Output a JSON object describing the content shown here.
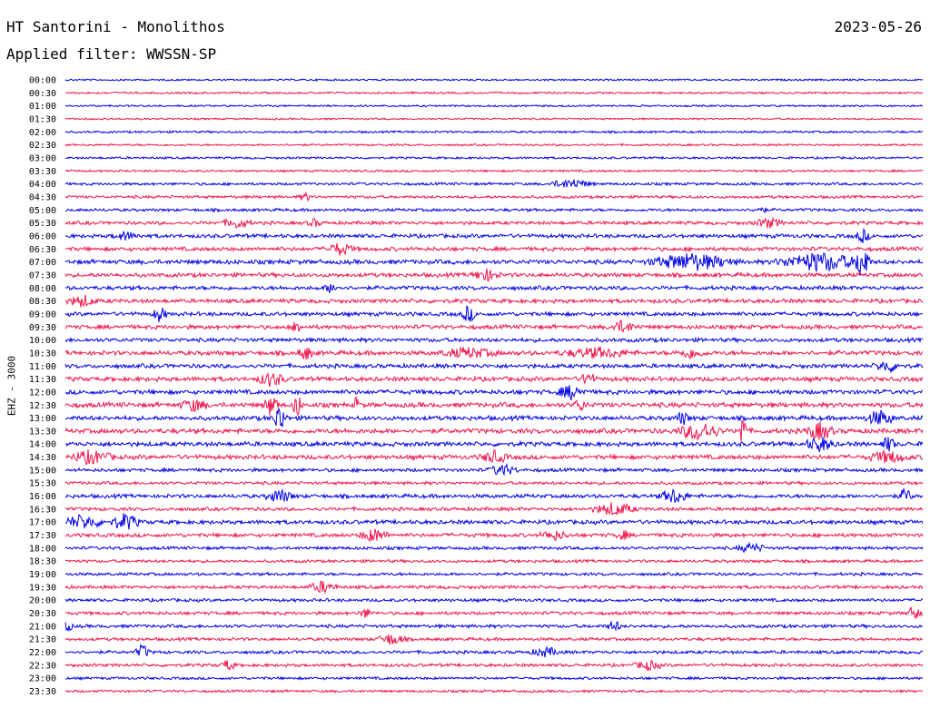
{
  "header": {
    "title": "HT Santorini - Monolithos",
    "date": "2023-05-26",
    "filter": "Applied filter: WWSSN-SP"
  },
  "side_label": "EHZ - 3000",
  "chart_data": {
    "type": "line",
    "title": "HT Santorini - Monolithos",
    "ylabel": "EHZ - 3000",
    "grid": false,
    "legend": "none",
    "colors": [
      "#0000e6",
      "#f0144b"
    ],
    "rows": [
      {
        "label": "00:00",
        "level": 0.2,
        "events": []
      },
      {
        "label": "00:30",
        "level": 0.25,
        "events": []
      },
      {
        "label": "01:00",
        "level": 0.22,
        "events": []
      },
      {
        "label": "01:30",
        "level": 0.2,
        "events": []
      },
      {
        "label": "02:00",
        "level": 0.3,
        "events": []
      },
      {
        "label": "02:30",
        "level": 0.25,
        "events": []
      },
      {
        "label": "03:00",
        "level": 0.3,
        "events": []
      },
      {
        "label": "03:30",
        "level": 0.3,
        "events": []
      },
      {
        "label": "04:00",
        "level": 0.45,
        "events": [
          {
            "t": 0.59,
            "w": 0.03,
            "a": 5
          }
        ]
      },
      {
        "label": "04:30",
        "level": 0.5,
        "events": [
          {
            "t": 0.28,
            "w": 0.01,
            "a": 4
          }
        ]
      },
      {
        "label": "05:00",
        "level": 0.55,
        "events": [
          {
            "t": 0.81,
            "w": 0.01,
            "a": 3
          }
        ]
      },
      {
        "label": "05:30",
        "level": 0.7,
        "events": [
          {
            "t": 0.2,
            "w": 0.02,
            "a": 5
          },
          {
            "t": 0.29,
            "w": 0.01,
            "a": 4
          },
          {
            "t": 0.82,
            "w": 0.02,
            "a": 5
          }
        ]
      },
      {
        "label": "06:00",
        "level": 0.8,
        "events": [
          {
            "t": 0.07,
            "w": 0.02,
            "a": 4
          },
          {
            "t": 0.93,
            "w": 0.01,
            "a": 7
          }
        ]
      },
      {
        "label": "06:30",
        "level": 0.85,
        "events": [
          {
            "t": 0.32,
            "w": 0.02,
            "a": 6
          }
        ]
      },
      {
        "label": "07:00",
        "level": 1.0,
        "events": [
          {
            "t": 0.73,
            "w": 0.06,
            "a": 9
          },
          {
            "t": 0.88,
            "w": 0.06,
            "a": 10
          },
          {
            "t": 0.93,
            "w": 0.01,
            "a": 22
          }
        ]
      },
      {
        "label": "07:30",
        "level": 0.9,
        "events": [
          {
            "t": 0.49,
            "w": 0.02,
            "a": 6
          }
        ]
      },
      {
        "label": "08:00",
        "level": 0.85,
        "events": [
          {
            "t": 0.31,
            "w": 0.01,
            "a": 5
          }
        ]
      },
      {
        "label": "08:30",
        "level": 0.9,
        "events": [
          {
            "t": 0.02,
            "w": 0.02,
            "a": 6
          }
        ]
      },
      {
        "label": "09:00",
        "level": 0.85,
        "events": [
          {
            "t": 0.11,
            "w": 0.01,
            "a": 8
          },
          {
            "t": 0.47,
            "w": 0.01,
            "a": 9
          }
        ]
      },
      {
        "label": "09:30",
        "level": 0.9,
        "events": [
          {
            "t": 0.27,
            "w": 0.005,
            "a": 14
          },
          {
            "t": 0.65,
            "w": 0.02,
            "a": 6
          }
        ]
      },
      {
        "label": "10:00",
        "level": 0.85,
        "events": []
      },
      {
        "label": "10:30",
        "level": 1.0,
        "events": [
          {
            "t": 0.28,
            "w": 0.01,
            "a": 8
          },
          {
            "t": 0.47,
            "w": 0.04,
            "a": 5
          },
          {
            "t": 0.62,
            "w": 0.05,
            "a": 5
          },
          {
            "t": 0.73,
            "w": 0.02,
            "a": 5
          }
        ]
      },
      {
        "label": "11:00",
        "level": 0.9,
        "events": [
          {
            "t": 0.96,
            "w": 0.02,
            "a": 6
          }
        ]
      },
      {
        "label": "11:30",
        "level": 1.0,
        "events": [
          {
            "t": 0.24,
            "w": 0.02,
            "a": 7
          },
          {
            "t": 0.61,
            "w": 0.01,
            "a": 8
          }
        ]
      },
      {
        "label": "12:00",
        "level": 1.0,
        "events": [
          {
            "t": 0.59,
            "w": 0.02,
            "a": 7
          }
        ]
      },
      {
        "label": "12:30",
        "level": 1.1,
        "events": [
          {
            "t": 0.15,
            "w": 0.02,
            "a": 6
          },
          {
            "t": 0.24,
            "w": 0.01,
            "a": 12
          },
          {
            "t": 0.27,
            "w": 0.005,
            "a": 22
          },
          {
            "t": 0.34,
            "w": 0.003,
            "a": 14
          },
          {
            "t": 0.6,
            "w": 0.01,
            "a": 6
          }
        ]
      },
      {
        "label": "13:00",
        "level": 1.0,
        "events": [
          {
            "t": 0.25,
            "w": 0.01,
            "a": 16
          },
          {
            "t": 0.72,
            "w": 0.01,
            "a": 7
          },
          {
            "t": 0.95,
            "w": 0.02,
            "a": 8
          }
        ]
      },
      {
        "label": "13:30",
        "level": 1.1,
        "events": [
          {
            "t": 0.74,
            "w": 0.03,
            "a": 10
          },
          {
            "t": 0.79,
            "w": 0.005,
            "a": 24
          },
          {
            "t": 0.88,
            "w": 0.02,
            "a": 9
          }
        ]
      },
      {
        "label": "14:00",
        "level": 1.0,
        "events": [
          {
            "t": 0.88,
            "w": 0.02,
            "a": 8
          },
          {
            "t": 0.96,
            "w": 0.01,
            "a": 8
          }
        ]
      },
      {
        "label": "14:30",
        "level": 1.0,
        "events": [
          {
            "t": 0.03,
            "w": 0.03,
            "a": 7
          },
          {
            "t": 0.5,
            "w": 0.02,
            "a": 6
          },
          {
            "t": 0.96,
            "w": 0.03,
            "a": 6
          }
        ]
      },
      {
        "label": "15:00",
        "level": 0.7,
        "events": [
          {
            "t": 0.51,
            "w": 0.02,
            "a": 6
          }
        ]
      },
      {
        "label": "15:30",
        "level": 0.6,
        "events": []
      },
      {
        "label": "16:00",
        "level": 0.8,
        "events": [
          {
            "t": 0.25,
            "w": 0.02,
            "a": 7
          },
          {
            "t": 0.71,
            "w": 0.02,
            "a": 8
          },
          {
            "t": 0.98,
            "w": 0.01,
            "a": 8
          }
        ]
      },
      {
        "label": "16:30",
        "level": 0.7,
        "events": [
          {
            "t": 0.64,
            "w": 0.03,
            "a": 7
          }
        ]
      },
      {
        "label": "17:00",
        "level": 0.9,
        "events": [
          {
            "t": 0.02,
            "w": 0.03,
            "a": 7
          },
          {
            "t": 0.07,
            "w": 0.02,
            "a": 9
          }
        ]
      },
      {
        "label": "17:30",
        "level": 0.8,
        "events": [
          {
            "t": 0.36,
            "w": 0.02,
            "a": 7
          },
          {
            "t": 0.57,
            "w": 0.02,
            "a": 5
          },
          {
            "t": 0.65,
            "w": 0.01,
            "a": 5
          }
        ]
      },
      {
        "label": "18:00",
        "level": 0.6,
        "events": [
          {
            "t": 0.8,
            "w": 0.02,
            "a": 5
          }
        ]
      },
      {
        "label": "18:30",
        "level": 0.55,
        "events": []
      },
      {
        "label": "19:00",
        "level": 0.55,
        "events": []
      },
      {
        "label": "19:30",
        "level": 0.65,
        "events": [
          {
            "t": 0.3,
            "w": 0.02,
            "a": 6
          }
        ]
      },
      {
        "label": "20:00",
        "level": 0.6,
        "events": []
      },
      {
        "label": "20:30",
        "level": 0.65,
        "events": [
          {
            "t": 0.35,
            "w": 0.01,
            "a": 5
          },
          {
            "t": 0.99,
            "w": 0.01,
            "a": 8
          }
        ]
      },
      {
        "label": "21:00",
        "level": 0.65,
        "events": [
          {
            "t": 0.0,
            "w": 0.01,
            "a": 7
          },
          {
            "t": 0.64,
            "w": 0.01,
            "a": 6
          }
        ]
      },
      {
        "label": "21:30",
        "level": 0.6,
        "events": [
          {
            "t": 0.38,
            "w": 0.02,
            "a": 6
          }
        ]
      },
      {
        "label": "22:00",
        "level": 0.6,
        "events": [
          {
            "t": 0.09,
            "w": 0.01,
            "a": 8
          },
          {
            "t": 0.56,
            "w": 0.02,
            "a": 5
          }
        ]
      },
      {
        "label": "22:30",
        "level": 0.6,
        "events": [
          {
            "t": 0.19,
            "w": 0.01,
            "a": 6
          },
          {
            "t": 0.68,
            "w": 0.02,
            "a": 5
          }
        ]
      },
      {
        "label": "23:00",
        "level": 0.45,
        "events": []
      },
      {
        "label": "23:30",
        "level": 0.4,
        "events": []
      }
    ]
  }
}
